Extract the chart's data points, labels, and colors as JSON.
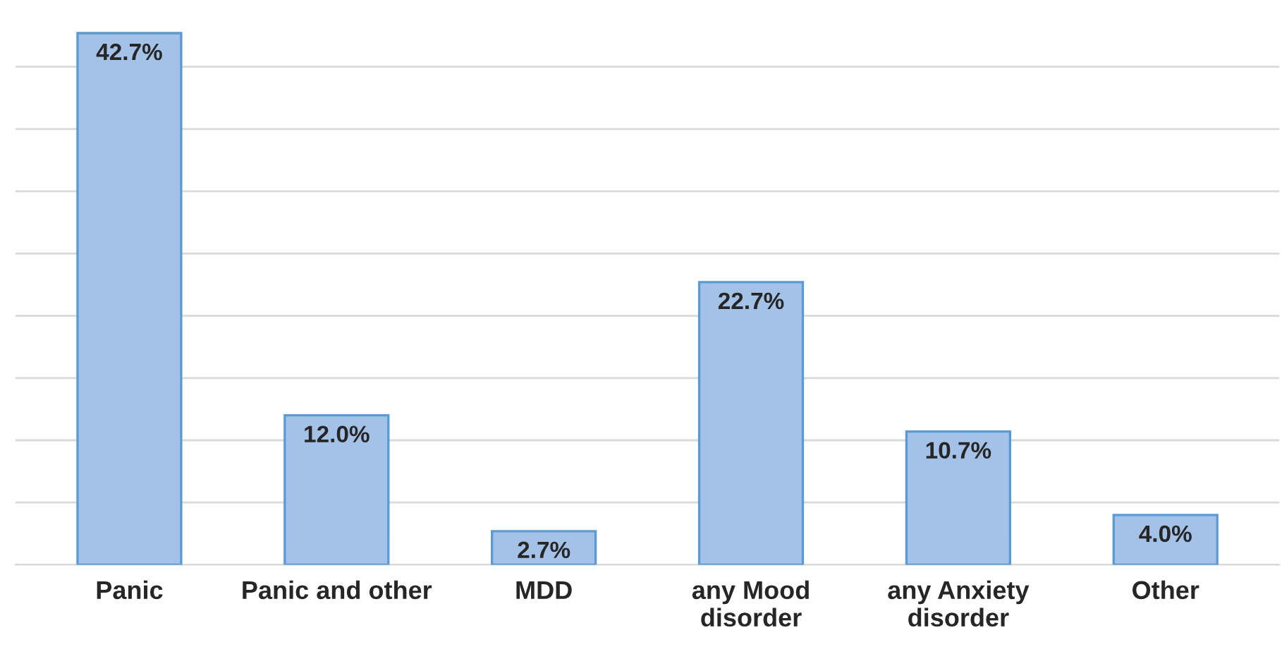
{
  "chart_data": {
    "type": "bar",
    "categories": [
      "Panic",
      "Panic and other",
      "MDD",
      "any Mood\ndisorder",
      "any Anxiety\ndisorder",
      "Other"
    ],
    "values": [
      42.7,
      12.0,
      2.7,
      22.7,
      10.7,
      4.0
    ],
    "value_labels": [
      "42.7%",
      "12.0%",
      "2.7%",
      "22.7%",
      "10.7%",
      "4.0%"
    ],
    "color": "#a4c2e8",
    "yticks": [
      {
        "value": 0,
        "label": null
      },
      {
        "value": 5,
        "label": null
      },
      {
        "value": 10,
        "label": null
      },
      {
        "value": 15,
        "label": null
      },
      {
        "value": 20,
        "label": null
      },
      {
        "value": 25,
        "label": null
      },
      {
        "value": 30,
        "label": null
      },
      {
        "value": 35,
        "label": null
      },
      {
        "value": 40,
        "label": null
      }
    ],
    "grid": "y",
    "tick_labels": "x"
  }
}
